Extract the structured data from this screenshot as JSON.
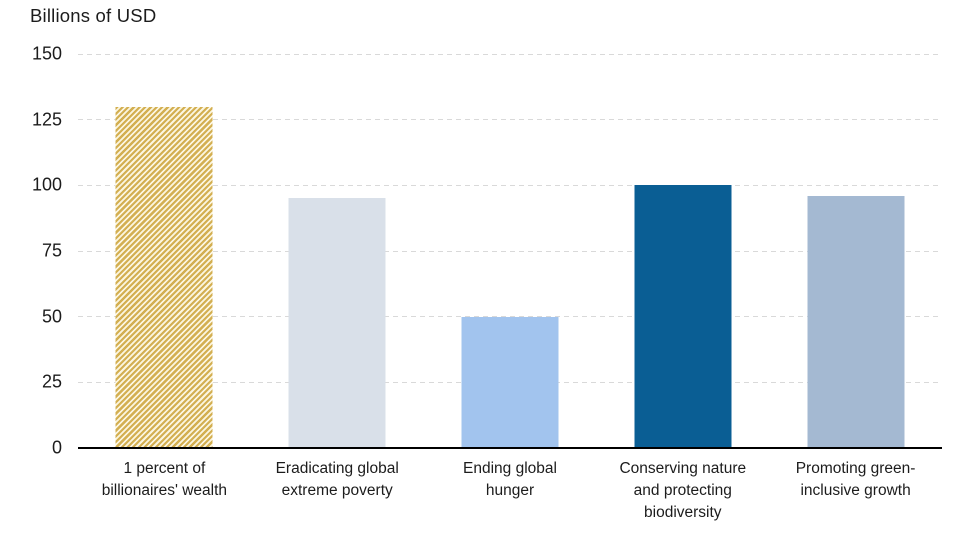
{
  "chart_data": {
    "type": "bar",
    "title": "Billions of USD",
    "categories": [
      "1 percent of\nbillionaires' wealth",
      "Eradicating global\nextreme poverty",
      "Ending global\nhunger",
      "Conserving nature\nand protecting\nbiodiversity",
      "Promoting green-\ninclusive growth"
    ],
    "values": [
      130,
      95,
      50,
      100,
      96
    ],
    "xlabel": "",
    "ylabel": "Billions of USD",
    "ylim": [
      0,
      150
    ],
    "yticks": [
      0,
      25,
      50,
      75,
      100,
      125,
      150
    ],
    "grid": "horizontal-dashed",
    "legend": "none",
    "bar_styles": [
      {
        "fill": "hatch-diagonal",
        "stripe_color": "#d3af51",
        "gap_color": "#fbf5df"
      },
      {
        "fill": "solid",
        "color": "#d9e0e9"
      },
      {
        "fill": "solid",
        "color": "#a2c4ee"
      },
      {
        "fill": "solid",
        "color": "#0a5e94"
      },
      {
        "fill": "solid",
        "color": "#a4b9d2"
      }
    ],
    "colors": {
      "gridline": "#d9d9d9",
      "axis": "#000000",
      "text": "#1c1c1c"
    }
  }
}
